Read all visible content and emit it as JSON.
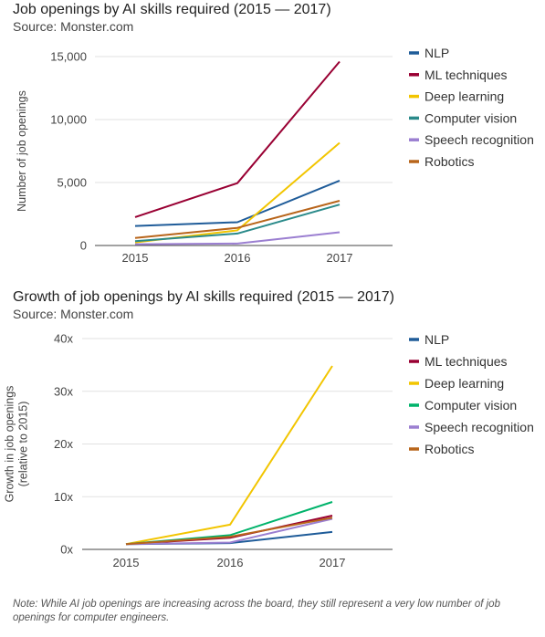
{
  "chart_data": [
    {
      "type": "line",
      "title": "Job openings by AI skills required (2015 — 2017)",
      "subtitle": "Source: Monster.com",
      "ylabel": "Number of job openings",
      "xlabel": "",
      "x": [
        "2015",
        "2016",
        "2017"
      ],
      "ylim": [
        0,
        15000
      ],
      "yticks": [
        0,
        5000,
        10000,
        15000
      ],
      "ytick_labels": [
        "0",
        "5,000",
        "10,000",
        "15,000"
      ],
      "grid": true,
      "legend_position": "right",
      "series": [
        {
          "name": "NLP",
          "color": "#1f5c99",
          "values": [
            1550,
            1850,
            5150
          ]
        },
        {
          "name": "ML techniques",
          "color": "#990033",
          "values": [
            2250,
            4950,
            14600
          ]
        },
        {
          "name": "Deep learning",
          "color": "#f2c500",
          "values": [
            250,
            1200,
            8150
          ]
        },
        {
          "name": "Computer vision",
          "color": "#2a8a8a",
          "values": [
            350,
            950,
            3250
          ]
        },
        {
          "name": "Speech recognition",
          "color": "#9b7fd1",
          "values": [
            100,
            150,
            1050
          ]
        },
        {
          "name": "Robotics",
          "color": "#b8651b",
          "values": [
            600,
            1400,
            3550
          ]
        }
      ]
    },
    {
      "type": "line",
      "title": "Growth of job openings by AI skills required (2015 — 2017)",
      "subtitle": "Source: Monster.com",
      "ylabel": "Growth in job openings (relative to 2015)",
      "ylabel_lines": [
        "Growth in job openings",
        "(relative to 2015)"
      ],
      "xlabel": "",
      "x": [
        "2015",
        "2016",
        "2017"
      ],
      "ylim": [
        0,
        40
      ],
      "yticks": [
        0,
        10,
        20,
        30,
        40
      ],
      "ytick_labels": [
        "0x",
        "10x",
        "20x",
        "30x",
        "40x"
      ],
      "grid": true,
      "legend_position": "right",
      "series": [
        {
          "name": "NLP",
          "color": "#1f5c99",
          "values": [
            1,
            1.2,
            3.3
          ]
        },
        {
          "name": "ML techniques",
          "color": "#990033",
          "values": [
            1,
            2.2,
            6.4
          ]
        },
        {
          "name": "Deep learning",
          "color": "#f2c500",
          "values": [
            1,
            4.7,
            34.8
          ]
        },
        {
          "name": "Computer vision",
          "color": "#00b36b",
          "values": [
            1,
            2.7,
            9.0
          ]
        },
        {
          "name": "Speech recognition",
          "color": "#9b7fd1",
          "values": [
            1,
            1.3,
            5.8
          ]
        },
        {
          "name": "Robotics",
          "color": "#b8651b",
          "values": [
            1,
            2.4,
            6.0
          ]
        }
      ]
    }
  ],
  "footnote": "Note: While AI job openings are increasing across the board, they still represent a very low number of job openings for computer engineers."
}
